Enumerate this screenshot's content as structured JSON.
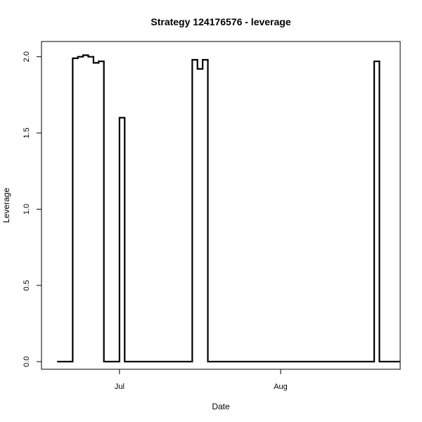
{
  "chart_data": {
    "type": "line",
    "step": true,
    "title": "Strategy 124176576 - leverage",
    "xlabel": "Date",
    "ylabel": "Leverage",
    "ylim": [
      -0.05,
      2.1
    ],
    "yticks": [
      0.0,
      0.5,
      1.0,
      1.5,
      2.0
    ],
    "ytick_labels": [
      "0.0",
      "0.5",
      "1.0",
      "1.5",
      "2.0"
    ],
    "xlim": [
      "2013-06-16",
      "2013-08-24"
    ],
    "xticks": [
      "2013-07-01",
      "2013-08-01"
    ],
    "xtick_labels": [
      "Jul",
      "Aug"
    ],
    "series": [
      {
        "x": [
          "2013-06-19",
          "2013-06-20",
          "2013-06-21",
          "2013-06-22",
          "2013-06-23",
          "2013-06-24",
          "2013-06-25",
          "2013-06-26",
          "2013-06-27",
          "2013-06-28",
          "2013-06-29",
          "2013-06-30",
          "2013-07-01",
          "2013-07-02",
          "2013-07-03",
          "2013-07-04",
          "2013-07-05",
          "2013-07-06",
          "2013-07-07",
          "2013-07-08",
          "2013-07-09",
          "2013-07-10",
          "2013-07-11",
          "2013-07-12",
          "2013-07-13",
          "2013-07-14",
          "2013-07-15",
          "2013-07-16",
          "2013-07-17",
          "2013-07-18",
          "2013-07-19",
          "2013-07-20",
          "2013-07-21",
          "2013-07-22",
          "2013-07-23",
          "2013-07-24",
          "2013-07-25",
          "2013-07-26",
          "2013-07-27",
          "2013-07-28",
          "2013-07-29",
          "2013-07-30",
          "2013-07-31",
          "2013-08-01",
          "2013-08-02",
          "2013-08-03",
          "2013-08-04",
          "2013-08-05",
          "2013-08-06",
          "2013-08-07",
          "2013-08-08",
          "2013-08-09",
          "2013-08-10",
          "2013-08-11",
          "2013-08-12",
          "2013-08-13",
          "2013-08-14",
          "2013-08-15",
          "2013-08-16",
          "2013-08-17",
          "2013-08-18",
          "2013-08-19",
          "2013-08-20",
          "2013-08-21",
          "2013-08-22",
          "2013-08-23"
        ],
        "values": [
          0.0,
          0.0,
          0.0,
          1.99,
          2.0,
          2.01,
          2.0,
          1.96,
          1.97,
          0.0,
          0.0,
          0.0,
          1.6,
          0.0,
          0.0,
          0.0,
          0.0,
          0.0,
          0.0,
          0.0,
          0.0,
          0.0,
          0.0,
          0.0,
          0.0,
          0.0,
          1.98,
          1.92,
          1.98,
          0.0,
          0.0,
          0.0,
          0.0,
          0.0,
          0.0,
          0.0,
          0.0,
          0.0,
          0.0,
          0.0,
          0.0,
          0.0,
          0.0,
          0.0,
          0.0,
          0.0,
          0.0,
          0.0,
          0.0,
          0.0,
          0.0,
          0.0,
          0.0,
          0.0,
          0.0,
          0.0,
          0.0,
          0.0,
          0.0,
          0.0,
          0.0,
          1.97,
          0.0,
          0.0,
          0.0,
          0.0
        ]
      }
    ],
    "colors": {
      "line": "#000000",
      "axes": "#000000",
      "background": "#ffffff"
    }
  }
}
